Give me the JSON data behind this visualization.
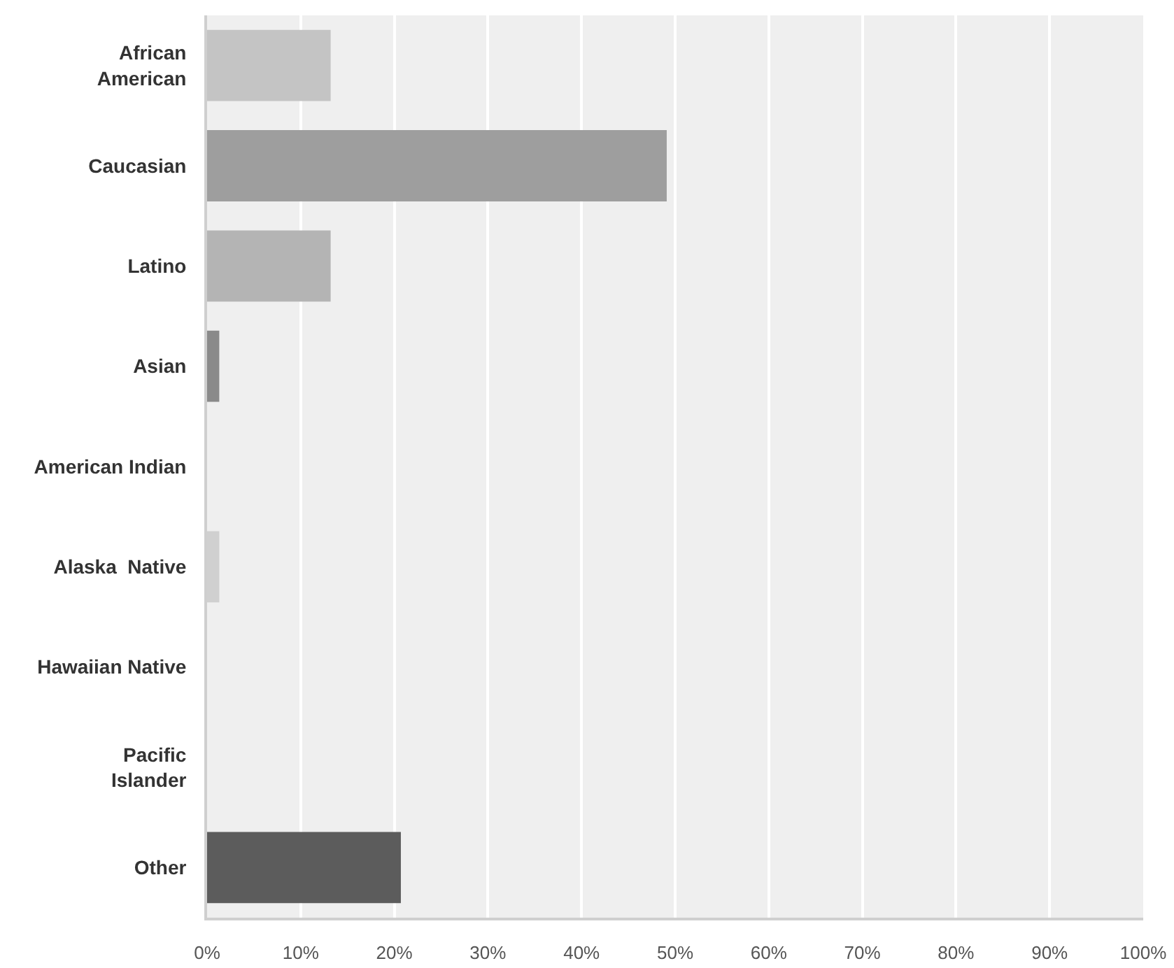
{
  "chart_data": {
    "type": "bar",
    "orientation": "horizontal",
    "categories": [
      "African\nAmerican",
      "Caucasian",
      "Latino",
      "Asian",
      "American Indian",
      "Alaska  Native",
      "Hawaiian Native",
      "Pacific\nIslander",
      "Other"
    ],
    "values": [
      13.2,
      49.1,
      13.2,
      1.3,
      0,
      1.3,
      0,
      0,
      20.7
    ],
    "colors": [
      "#c4c4c4",
      "#9e9e9e",
      "#b4b4b4",
      "#8a8a8a",
      "#b0b0b0",
      "#d0d0d0",
      "#b0b0b0",
      "#b0b0b0",
      "#5c5c5c"
    ],
    "xlim": [
      0,
      100
    ],
    "xticks": [
      {
        "value": 0,
        "label": "0%"
      },
      {
        "value": 10,
        "label": "10%"
      },
      {
        "value": 20,
        "label": "20%"
      },
      {
        "value": 30,
        "label": "30%"
      },
      {
        "value": 40,
        "label": "40%"
      },
      {
        "value": 50,
        "label": "50%"
      },
      {
        "value": 60,
        "label": "60%"
      },
      {
        "value": 70,
        "label": "70%"
      },
      {
        "value": 80,
        "label": "80%"
      },
      {
        "value": 90,
        "label": "90%"
      },
      {
        "value": 100,
        "label": "100%"
      }
    ],
    "grid": "x"
  }
}
